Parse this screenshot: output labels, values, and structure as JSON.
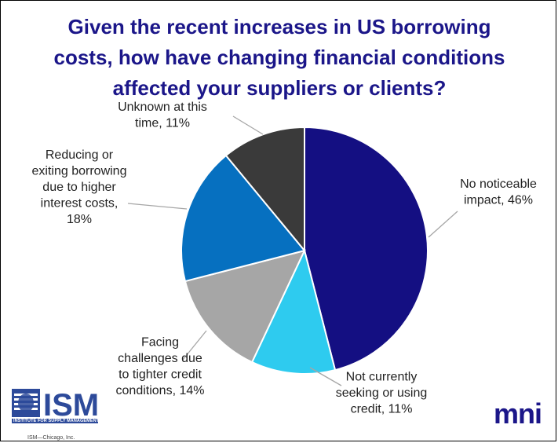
{
  "title": {
    "line1": "Given the recent increases in US borrowing",
    "line2": "costs, how have changing financial conditions",
    "line3": "affected your suppliers or clients?"
  },
  "chart_data": {
    "type": "pie",
    "title": "Given the recent increases in US borrowing costs, how have changing financial conditions affected your suppliers or clients?",
    "slices": [
      {
        "label": "No noticeable impact",
        "value": 46,
        "color": "#140f82",
        "label_lines": [
          "No noticeable",
          "impact, 46%"
        ]
      },
      {
        "label": "Not currently seeking or using credit",
        "value": 11,
        "color": "#2ecbef",
        "label_lines": [
          "Not currently",
          "seeking or using",
          "credit, 11%"
        ]
      },
      {
        "label": "Facing challenges due to tighter credit conditions",
        "value": 14,
        "color": "#a6a6a6",
        "label_lines": [
          "Facing",
          "challenges due",
          "to tighter credit",
          "conditions, 14%"
        ]
      },
      {
        "label": "Reducing or exiting borrowing due to higher interest costs",
        "value": 18,
        "color": "#0670c0",
        "label_lines": [
          "Reducing or",
          "exiting borrowing",
          "due to higher",
          "interest costs,",
          "18%"
        ]
      },
      {
        "label": "Unknown at this time",
        "value": 11,
        "color": "#3a3a3a",
        "label_lines": [
          "Unknown at this",
          "time, 11%"
        ]
      }
    ]
  },
  "logos": {
    "ism_text": "ISM",
    "ism_subtitle": "INSTITUTE FOR SUPPLY MANAGEMENT",
    "ism_chicago": "ISM—Chicago, Inc.",
    "mni_text": "mni"
  }
}
